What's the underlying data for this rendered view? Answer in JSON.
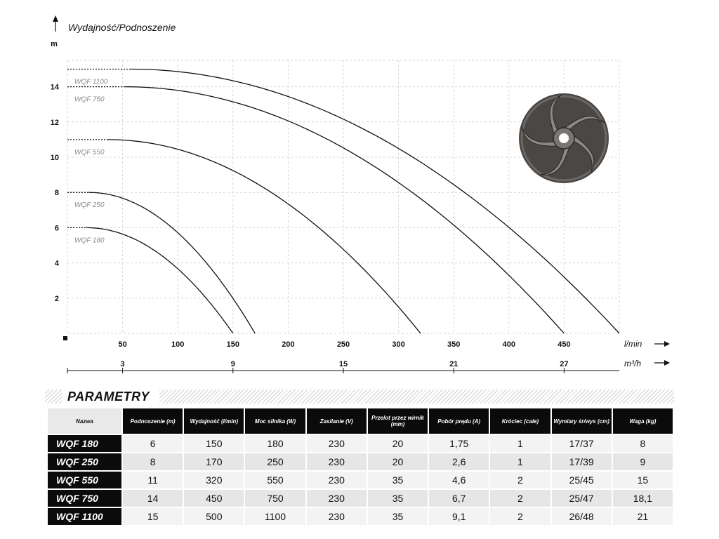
{
  "chart_data": {
    "type": "line",
    "title": "",
    "ylabel": "Wydajność/Podnoszenie",
    "yunit": "m",
    "xunit_primary": "l/min",
    "xunit_secondary": "m³/h",
    "xlim": [
      0,
      500
    ],
    "ylim": [
      0,
      16
    ],
    "yticks": [
      "2",
      "4",
      "6",
      "8",
      "10",
      "12",
      "14"
    ],
    "xticks_primary": [
      "50",
      "100",
      "150",
      "200",
      "250",
      "300",
      "350",
      "400",
      "450"
    ],
    "xticks_secondary": [
      "3",
      "9",
      "15",
      "21",
      "27"
    ],
    "grid": true,
    "series": [
      {
        "name": "WQF 1100",
        "max_head": 15,
        "max_flow": 500
      },
      {
        "name": "WQF 750",
        "max_head": 14,
        "max_flow": 450
      },
      {
        "name": "WQF 550",
        "max_head": 11,
        "max_flow": 320
      },
      {
        "name": "WQF 250",
        "max_head": 8,
        "max_flow": 170
      },
      {
        "name": "WQF 180",
        "max_head": 6,
        "max_flow": 150
      }
    ]
  },
  "section": {
    "title": "PARAMETRY"
  },
  "table": {
    "headers": [
      "Nazwa",
      "Podnoszenie (m)",
      "Wydajność (l/min)",
      "Moc silnika (W)",
      "Zasilanie (V)",
      "Przelot przez wirnik (mm)",
      "Pobór prądu (A)",
      "Króciec (cale)",
      "Wymiary śr/wys (cm)",
      "Waga (kg)"
    ],
    "rows": [
      [
        "WQF 180",
        "6",
        "150",
        "180",
        "230",
        "20",
        "1,75",
        "1",
        "17/37",
        "8"
      ],
      [
        "WQF 250",
        "8",
        "170",
        "250",
        "230",
        "20",
        "2,6",
        "1",
        "17/39",
        "9"
      ],
      [
        "WQF 550",
        "11",
        "320",
        "550",
        "230",
        "35",
        "4,6",
        "2",
        "25/45",
        "15"
      ],
      [
        "WQF 750",
        "14",
        "450",
        "750",
        "230",
        "35",
        "6,7",
        "2",
        "25/47",
        "18,1"
      ],
      [
        "WQF 1100",
        "15",
        "500",
        "1100",
        "230",
        "35",
        "9,1",
        "2",
        "26/48",
        "21"
      ]
    ]
  },
  "colors": {
    "curve": "#111111",
    "grid": "#d6d6d6",
    "header_dark": "#0b0b0b",
    "impeller": "#4a4744"
  },
  "icons": {
    "impeller": "impeller-icon",
    "arrow": "arrow-right-icon"
  }
}
